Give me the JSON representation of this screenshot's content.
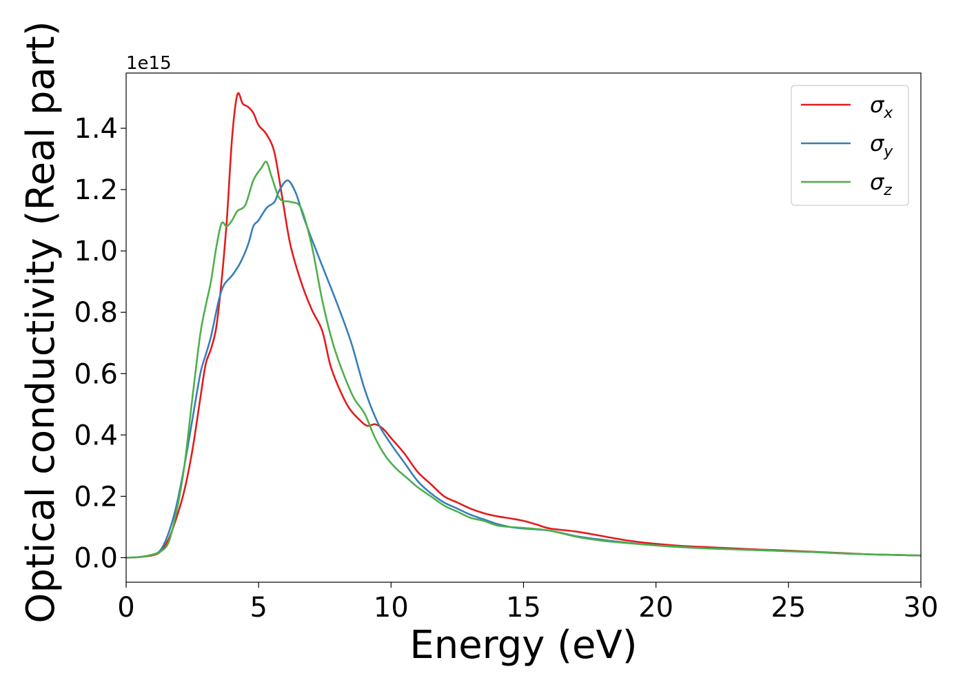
{
  "chart_data": {
    "type": "line",
    "xlabel": "Energy (eV)",
    "ylabel": "Optical conductivity (Real part)",
    "y_offset_label": "1e15",
    "xlim": [
      0,
      30
    ],
    "ylim": [
      -0.08,
      1.58
    ],
    "x_ticks": [
      0,
      5,
      10,
      15,
      20,
      25,
      30
    ],
    "x_tick_labels": [
      "0",
      "5",
      "10",
      "15",
      "20",
      "25",
      "30"
    ],
    "y_ticks": [
      0.0,
      0.2,
      0.4,
      0.6,
      0.8,
      1.0,
      1.2,
      1.4
    ],
    "y_tick_labels": [
      "0.0",
      "0.2",
      "0.4",
      "0.6",
      "0.8",
      "1.0",
      "1.2",
      "1.4"
    ],
    "grid": false,
    "legend_position": "top-right",
    "series": [
      {
        "name": "σx",
        "name_base": "σ",
        "name_sub": "x",
        "color": "#e41a1c",
        "points": [
          [
            0,
            0
          ],
          [
            0.5,
            0.002
          ],
          [
            1.0,
            0.008
          ],
          [
            1.3,
            0.02
          ],
          [
            1.6,
            0.06
          ],
          [
            1.9,
            0.13
          ],
          [
            2.2,
            0.22
          ],
          [
            2.5,
            0.35
          ],
          [
            2.8,
            0.52
          ],
          [
            3.0,
            0.63
          ],
          [
            3.2,
            0.68
          ],
          [
            3.4,
            0.75
          ],
          [
            3.6,
            0.9
          ],
          [
            3.8,
            1.1
          ],
          [
            4.0,
            1.37
          ],
          [
            4.2,
            1.51
          ],
          [
            4.4,
            1.48
          ],
          [
            4.6,
            1.47
          ],
          [
            4.8,
            1.45
          ],
          [
            5.0,
            1.41
          ],
          [
            5.3,
            1.38
          ],
          [
            5.6,
            1.32
          ],
          [
            5.9,
            1.17
          ],
          [
            6.2,
            1.02
          ],
          [
            6.6,
            0.9
          ],
          [
            7.0,
            0.81
          ],
          [
            7.4,
            0.74
          ],
          [
            7.7,
            0.63
          ],
          [
            8.0,
            0.56
          ],
          [
            8.4,
            0.49
          ],
          [
            8.8,
            0.45
          ],
          [
            9.1,
            0.43
          ],
          [
            9.4,
            0.435
          ],
          [
            9.7,
            0.42
          ],
          [
            10.0,
            0.39
          ],
          [
            10.5,
            0.34
          ],
          [
            11.0,
            0.28
          ],
          [
            11.5,
            0.24
          ],
          [
            12.0,
            0.2
          ],
          [
            12.5,
            0.18
          ],
          [
            13.0,
            0.16
          ],
          [
            13.5,
            0.145
          ],
          [
            14.0,
            0.135
          ],
          [
            14.5,
            0.128
          ],
          [
            15.0,
            0.12
          ],
          [
            15.5,
            0.108
          ],
          [
            16.0,
            0.095
          ],
          [
            17.0,
            0.085
          ],
          [
            18.0,
            0.07
          ],
          [
            19.0,
            0.055
          ],
          [
            20.0,
            0.045
          ],
          [
            21.0,
            0.038
          ],
          [
            22.0,
            0.034
          ],
          [
            23.0,
            0.03
          ],
          [
            24.0,
            0.026
          ],
          [
            25.0,
            0.023
          ],
          [
            26.0,
            0.019
          ],
          [
            27.0,
            0.015
          ],
          [
            28.0,
            0.011
          ],
          [
            29.0,
            0.009
          ],
          [
            30.0,
            0.007
          ]
        ]
      },
      {
        "name": "σy",
        "name_base": "σ",
        "name_sub": "y",
        "color": "#377eb8",
        "points": [
          [
            0,
            0
          ],
          [
            0.5,
            0.002
          ],
          [
            1.0,
            0.01
          ],
          [
            1.3,
            0.025
          ],
          [
            1.6,
            0.08
          ],
          [
            1.9,
            0.17
          ],
          [
            2.2,
            0.3
          ],
          [
            2.5,
            0.45
          ],
          [
            2.8,
            0.6
          ],
          [
            3.0,
            0.66
          ],
          [
            3.2,
            0.72
          ],
          [
            3.5,
            0.84
          ],
          [
            3.7,
            0.89
          ],
          [
            4.0,
            0.92
          ],
          [
            4.3,
            0.96
          ],
          [
            4.6,
            1.02
          ],
          [
            4.8,
            1.08
          ],
          [
            5.0,
            1.1
          ],
          [
            5.3,
            1.14
          ],
          [
            5.6,
            1.16
          ],
          [
            5.8,
            1.2
          ],
          [
            6.1,
            1.23
          ],
          [
            6.4,
            1.19
          ],
          [
            6.7,
            1.11
          ],
          [
            7.0,
            1.04
          ],
          [
            7.5,
            0.93
          ],
          [
            8.0,
            0.82
          ],
          [
            8.5,
            0.7
          ],
          [
            9.0,
            0.55
          ],
          [
            9.5,
            0.44
          ],
          [
            10.0,
            0.37
          ],
          [
            10.5,
            0.31
          ],
          [
            11.0,
            0.25
          ],
          [
            11.5,
            0.21
          ],
          [
            12.0,
            0.18
          ],
          [
            12.5,
            0.16
          ],
          [
            13.0,
            0.14
          ],
          [
            13.5,
            0.125
          ],
          [
            14.0,
            0.11
          ],
          [
            14.5,
            0.1
          ],
          [
            15.0,
            0.095
          ],
          [
            16.0,
            0.088
          ],
          [
            17.0,
            0.07
          ],
          [
            18.0,
            0.058
          ],
          [
            19.0,
            0.048
          ],
          [
            20.0,
            0.04
          ],
          [
            21.0,
            0.034
          ],
          [
            22.0,
            0.03
          ],
          [
            23.0,
            0.027
          ],
          [
            24.0,
            0.024
          ],
          [
            25.0,
            0.021
          ],
          [
            26.0,
            0.018
          ],
          [
            27.0,
            0.014
          ],
          [
            28.0,
            0.011
          ],
          [
            29.0,
            0.009
          ],
          [
            30.0,
            0.007
          ]
        ]
      },
      {
        "name": "σz",
        "name_base": "σ",
        "name_sub": "z",
        "color": "#4daf4a",
        "points": [
          [
            0,
            0
          ],
          [
            0.5,
            0.002
          ],
          [
            1.0,
            0.01
          ],
          [
            1.3,
            0.02
          ],
          [
            1.6,
            0.05
          ],
          [
            1.9,
            0.15
          ],
          [
            2.2,
            0.3
          ],
          [
            2.5,
            0.52
          ],
          [
            2.8,
            0.73
          ],
          [
            3.0,
            0.82
          ],
          [
            3.2,
            0.9
          ],
          [
            3.4,
            1.01
          ],
          [
            3.6,
            1.09
          ],
          [
            3.8,
            1.08
          ],
          [
            4.0,
            1.1
          ],
          [
            4.2,
            1.13
          ],
          [
            4.5,
            1.15
          ],
          [
            4.8,
            1.23
          ],
          [
            5.1,
            1.27
          ],
          [
            5.3,
            1.29
          ],
          [
            5.5,
            1.24
          ],
          [
            5.8,
            1.17
          ],
          [
            6.2,
            1.16
          ],
          [
            6.6,
            1.14
          ],
          [
            7.0,
            1.02
          ],
          [
            7.4,
            0.84
          ],
          [
            7.8,
            0.7
          ],
          [
            8.2,
            0.6
          ],
          [
            8.6,
            0.52
          ],
          [
            9.0,
            0.47
          ],
          [
            9.4,
            0.39
          ],
          [
            9.8,
            0.33
          ],
          [
            10.2,
            0.29
          ],
          [
            10.6,
            0.26
          ],
          [
            11.0,
            0.23
          ],
          [
            11.5,
            0.2
          ],
          [
            12.0,
            0.17
          ],
          [
            12.5,
            0.15
          ],
          [
            13.0,
            0.13
          ],
          [
            13.5,
            0.12
          ],
          [
            14.0,
            0.105
          ],
          [
            14.5,
            0.1
          ],
          [
            15.0,
            0.097
          ],
          [
            16.0,
            0.088
          ],
          [
            17.0,
            0.068
          ],
          [
            18.0,
            0.055
          ],
          [
            19.0,
            0.047
          ],
          [
            20.0,
            0.04
          ],
          [
            21.0,
            0.035
          ],
          [
            22.0,
            0.03
          ],
          [
            23.0,
            0.027
          ],
          [
            24.0,
            0.024
          ],
          [
            25.0,
            0.021
          ],
          [
            26.0,
            0.018
          ],
          [
            27.0,
            0.014
          ],
          [
            28.0,
            0.011
          ],
          [
            29.0,
            0.009
          ],
          [
            30.0,
            0.007
          ]
        ]
      }
    ]
  }
}
